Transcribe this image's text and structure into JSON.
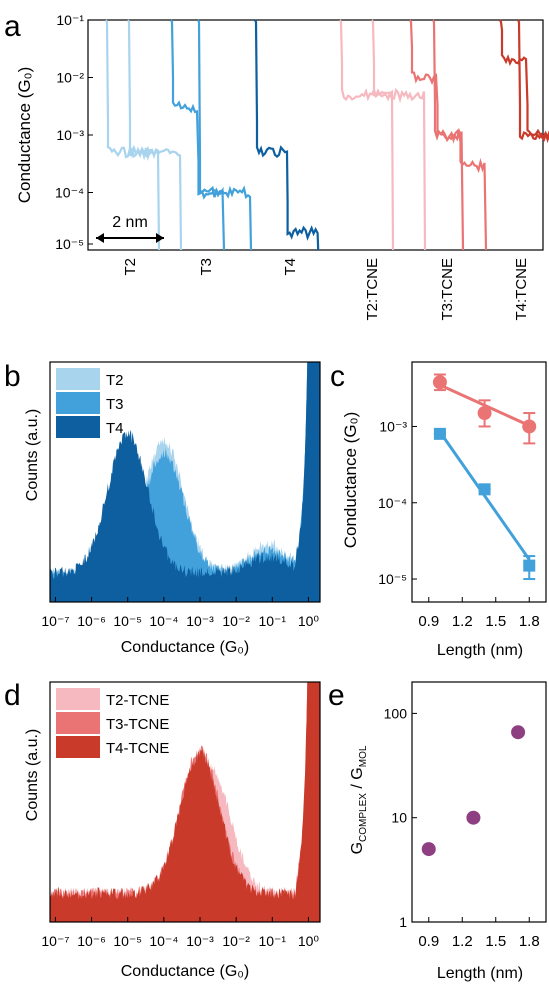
{
  "chart_data": [
    {
      "panel": "a",
      "type": "line",
      "panel_label": "a",
      "ylabel": "Conductance (G₀)",
      "yscale": "log",
      "ylim": [
        1e-05,
        0.1
      ],
      "y_ticks": [
        "10⁻⁵",
        "10⁻⁴",
        "10⁻³",
        "10⁻²",
        "10⁻¹"
      ],
      "scale_bar": "2 nm",
      "colors": {
        "T2": "#a9d4ee",
        "T3": "#42a1db",
        "T4": "#0d5f9f",
        "T2:TCNE": "#f6b9c0",
        "T3:TCNE": "#ea7474",
        "T4:TCNE": "#c93a2a"
      },
      "series": [
        {
          "name": "T2",
          "traces": [
            {
              "plateaus": [
                0.0005
              ],
              "width_nm": 1.5
            },
            {
              "plateaus": [
                0.0005
              ],
              "width_nm": 1.5
            }
          ]
        },
        {
          "name": "T3",
          "traces": [
            {
              "plateaus": [
                0.003,
                0.0001
              ],
              "width_nm": 1.5
            },
            {
              "plateaus": [
                0.0001
              ],
              "width_nm": 1.5
            }
          ]
        },
        {
          "name": "T4",
          "traces": [
            {
              "plateaus": [
                0.0005,
                2e-05
              ],
              "width_nm": 1.8
            }
          ]
        },
        {
          "name": "T2:TCNE",
          "traces": [
            {
              "plateaus": [
                0.005
              ],
              "width_nm": 1.5
            },
            {
              "plateaus": [
                0.005
              ],
              "width_nm": 1.5
            }
          ]
        },
        {
          "name": "T3:TCNE",
          "traces": [
            {
              "plateaus": [
                0.01,
                0.001
              ],
              "width_nm": 1.5
            },
            {
              "plateaus": [
                0.001,
                0.0003
              ],
              "width_nm": 1.5
            }
          ]
        },
        {
          "name": "T4:TCNE",
          "traces": [
            {
              "plateaus": [
                0.02,
                0.001
              ],
              "width_nm": 1.5
            },
            {
              "plateaus": [
                0.001
              ],
              "width_nm": 1.5
            }
          ]
        }
      ]
    },
    {
      "panel": "b",
      "type": "area",
      "panel_label": "b",
      "xlabel": "Conductance (G₀)",
      "ylabel": "Counts (a.u.)",
      "xscale": "log",
      "xlim": [
        1e-07,
        2
      ],
      "x_ticks": [
        "10⁻⁷",
        "10⁻⁶",
        "10⁻⁵",
        "10⁻⁴",
        "10⁻³",
        "10⁻²",
        "10⁻¹",
        "10⁰"
      ],
      "legend": {
        "position": "top-left",
        "entries": [
          "T2",
          "T3",
          "T4"
        ]
      },
      "series": [
        {
          "name": "T2",
          "color": "#a9d4ee",
          "peaks_log10": [
            {
              "center": -4.0,
              "height": 0.55
            },
            {
              "center": -1.1,
              "height": 0.12
            }
          ]
        },
        {
          "name": "T3",
          "color": "#42a1db",
          "peaks_log10": [
            {
              "center": -4.0,
              "height": 0.5
            },
            {
              "center": -1.1,
              "height": 0.1
            }
          ]
        },
        {
          "name": "T4",
          "color": "#0d5f9f",
          "peaks_log10": [
            {
              "center": -5.0,
              "height": 0.58
            },
            {
              "center": -1.1,
              "height": 0.07
            }
          ]
        }
      ]
    },
    {
      "panel": "c",
      "type": "scatter",
      "panel_label": "c",
      "xlabel": "Length (nm)",
      "ylabel": "Conductance (G₀)",
      "yscale": "log",
      "xlim": [
        0.75,
        1.95
      ],
      "ylim": [
        5e-06,
        0.007
      ],
      "x_ticks": [
        "0.9",
        "1.2",
        "1.5",
        "1.8"
      ],
      "y_ticks": [
        "10⁻⁵",
        "10⁻⁴",
        "10⁻³"
      ],
      "series": [
        {
          "color": "#ea7474",
          "marker": "circle",
          "x": [
            1.0,
            1.4,
            1.8
          ],
          "y": [
            0.0038,
            0.0015,
            0.001
          ],
          "yerr_low": [
            0.003,
            0.001,
            0.0006
          ],
          "yerr_high": [
            0.0048,
            0.0022,
            0.0015
          ],
          "fit": {
            "x": [
              1.0,
              1.85
            ],
            "y": [
              0.0035,
              0.00095
            ]
          }
        },
        {
          "color": "#42a1db",
          "marker": "square",
          "x": [
            1.0,
            1.4,
            1.8
          ],
          "y": [
            0.0008,
            0.00015,
            1.5e-05
          ],
          "yerr_low": [
            0.0008,
            0.00015,
            1e-05
          ],
          "yerr_high": [
            0.0008,
            0.00015,
            2e-05
          ],
          "fit": {
            "x": [
              1.0,
              1.8
            ],
            "y": [
              0.00085,
              1.8e-05
            ]
          }
        }
      ]
    },
    {
      "panel": "d",
      "type": "area",
      "panel_label": "d",
      "xlabel": "Conductance (G₀)",
      "ylabel": "Counts (a.u.)",
      "xscale": "log",
      "xlim": [
        1e-07,
        2
      ],
      "x_ticks": [
        "10⁻⁷",
        "10⁻⁶",
        "10⁻⁵",
        "10⁻⁴",
        "10⁻³",
        "10⁻²",
        "10⁻¹",
        "10⁰"
      ],
      "legend": {
        "position": "top-left",
        "entries": [
          "T2-TCNE",
          "T3-TCNE",
          "T4-TCNE"
        ]
      },
      "series": [
        {
          "name": "T2-TCNE",
          "color": "#f6b9c0",
          "peaks_log10": [
            {
              "center": -2.7,
              "height": 0.52
            }
          ]
        },
        {
          "name": "T3-TCNE",
          "color": "#ea7474",
          "peaks_log10": [
            {
              "center": -3.0,
              "height": 0.6
            }
          ]
        },
        {
          "name": "T4-TCNE",
          "color": "#c93a2a",
          "peaks_log10": [
            {
              "center": -3.0,
              "height": 0.58
            }
          ]
        }
      ]
    },
    {
      "panel": "e",
      "type": "scatter",
      "panel_label": "e",
      "xlabel": "Length (nm)",
      "ylabel_main": "G",
      "ylabel_sub1": "COMPLEX",
      "ylabel_sep": " / G",
      "ylabel_sub2": "MOL",
      "yscale": "log",
      "xlim": [
        0.75,
        1.95
      ],
      "ylim": [
        1,
        200
      ],
      "x_ticks": [
        "0.9",
        "1.2",
        "1.5",
        "1.8"
      ],
      "y_ticks": [
        "1",
        "10",
        "100"
      ],
      "series": [
        {
          "color": "#8e3f82",
          "marker": "circle",
          "x": [
            0.9,
            1.3,
            1.7
          ],
          "y": [
            5,
            10,
            66
          ]
        }
      ]
    }
  ]
}
